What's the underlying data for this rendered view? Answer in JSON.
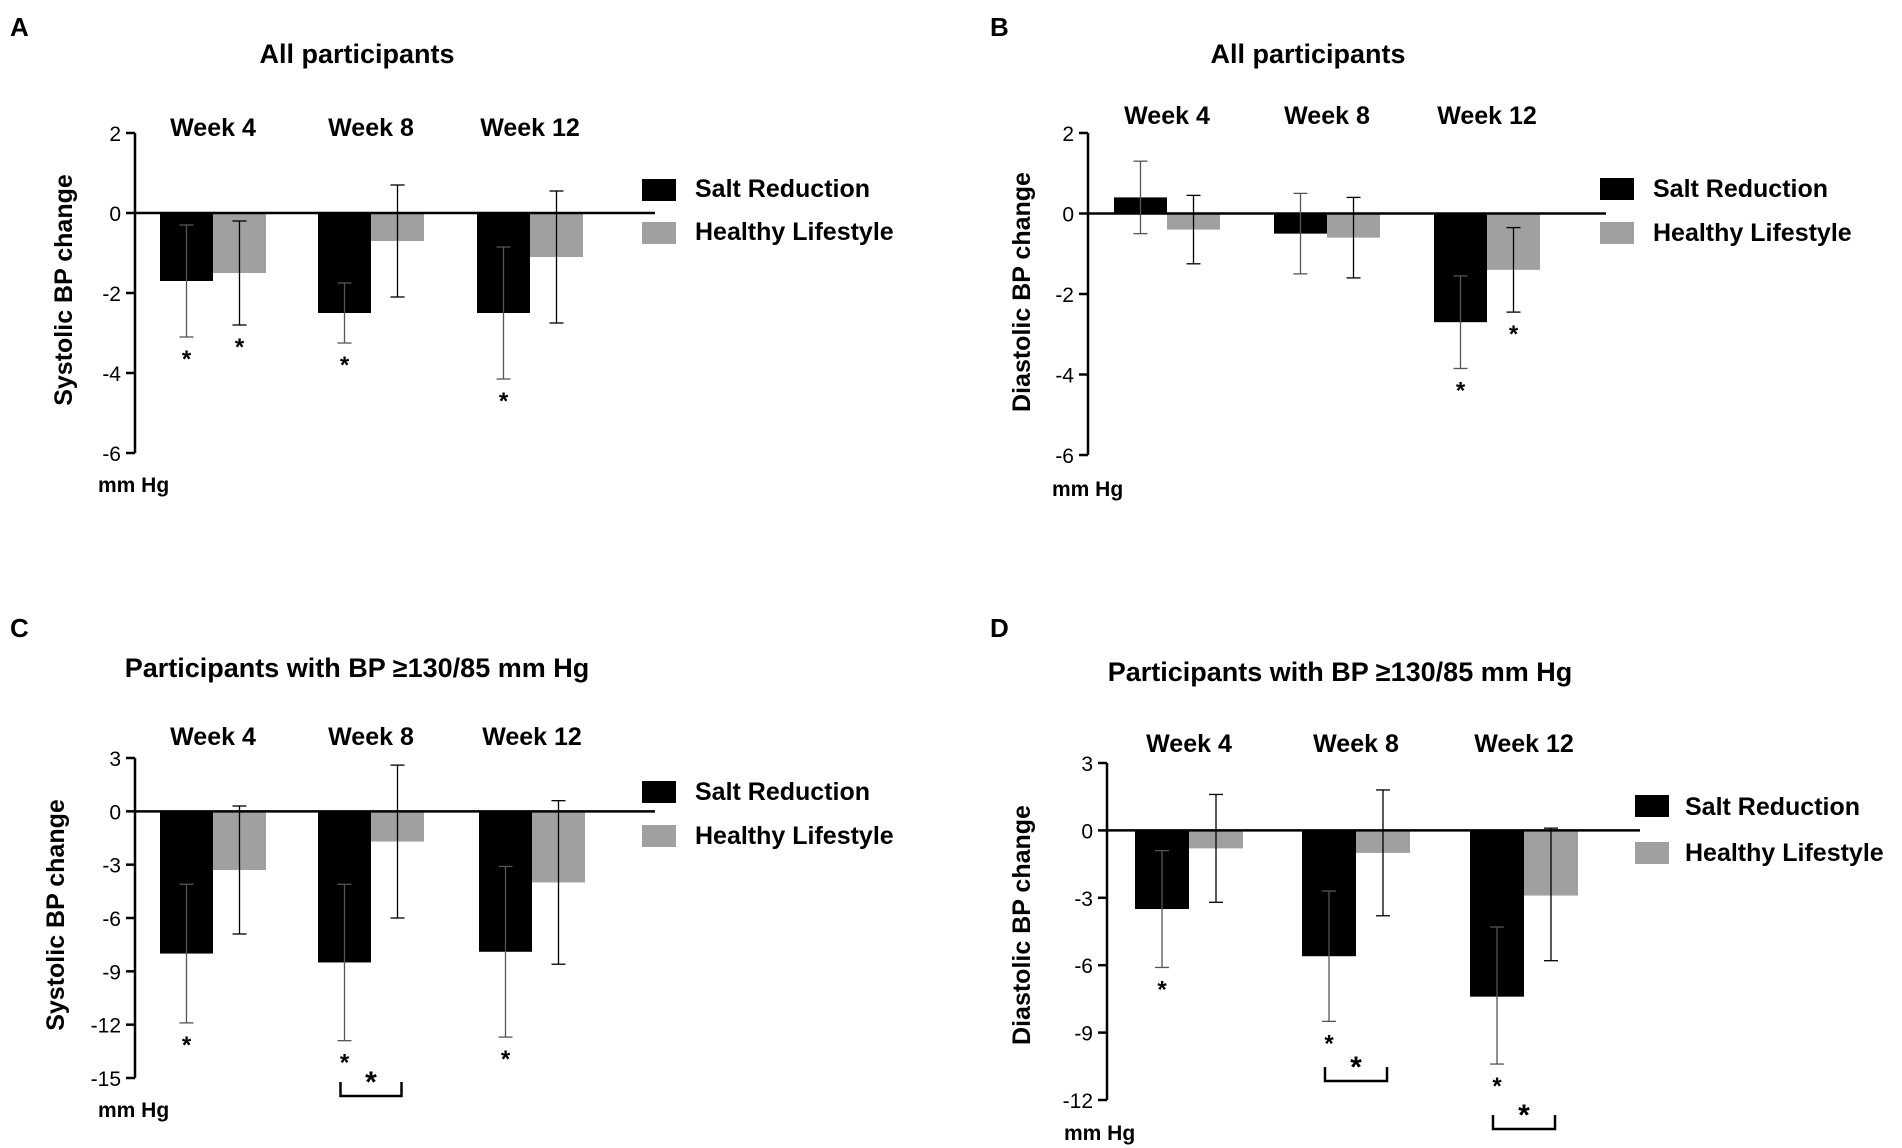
{
  "colors": {
    "salt": "#000000",
    "healthy": "#a0a0a0",
    "axis": "#000000"
  },
  "chart_data": [
    {
      "type": "bar",
      "panel_letter": "A",
      "title": "All participants",
      "ylabel": "Systolic BP change",
      "unit_label": "mm Hg",
      "ylim": [
        -6,
        2
      ],
      "yticks": [
        2,
        0,
        -2,
        -4,
        -6
      ],
      "ytick_labels": [
        "2",
        "0",
        "-2",
        "-4",
        "-6"
      ],
      "categories": [
        "Week 4",
        "Week 8",
        "Week 12"
      ],
      "series": [
        {
          "name": "Salt Reduction",
          "color": "#000000",
          "values": [
            -1.7,
            -2.5,
            -2.5
          ],
          "error_low": [
            -3.1,
            -3.25,
            -4.15
          ],
          "error_high": [
            -0.3,
            -1.75,
            -0.85
          ],
          "sig": [
            "*",
            "*",
            "*"
          ]
        },
        {
          "name": "Healthy Lifestyle",
          "color": "#a0a0a0",
          "values": [
            -1.5,
            -0.7,
            -1.1
          ],
          "error_low": [
            -2.8,
            -2.1,
            -2.75
          ],
          "error_high": [
            -0.2,
            0.7,
            0.55
          ],
          "sig": [
            "*",
            "",
            ""
          ]
        }
      ],
      "brackets": []
    },
    {
      "type": "bar",
      "panel_letter": "B",
      "title": "All participants",
      "ylabel": "Diastolic BP change",
      "unit_label": "mm Hg",
      "ylim": [
        -6,
        2
      ],
      "yticks": [
        2,
        0,
        -2,
        -4,
        -6
      ],
      "ytick_labels": [
        "2",
        "0",
        "-2",
        "-4",
        "-6"
      ],
      "categories": [
        "Week 4",
        "Week 8",
        "Week 12"
      ],
      "series": [
        {
          "name": "Salt Reduction",
          "color": "#000000",
          "values": [
            0.4,
            -0.5,
            -2.7
          ],
          "error_low": [
            -0.5,
            -1.5,
            -3.85
          ],
          "error_high": [
            1.3,
            0.5,
            -1.55
          ],
          "sig": [
            "",
            "",
            "*"
          ]
        },
        {
          "name": "Healthy Lifestyle",
          "color": "#a0a0a0",
          "values": [
            -0.4,
            -0.6,
            -1.4
          ],
          "error_low": [
            -1.25,
            -1.6,
            -2.45
          ],
          "error_high": [
            0.45,
            0.4,
            -0.35
          ],
          "sig": [
            "",
            "",
            "*"
          ]
        }
      ],
      "brackets": []
    },
    {
      "type": "bar",
      "panel_letter": "C",
      "title": "Participants with BP ≥130/85 mm Hg",
      "ylabel": "Systolic BP change",
      "unit_label": "mm Hg",
      "ylim": [
        -15,
        3
      ],
      "yticks": [
        3,
        0,
        -3,
        -6,
        -9,
        -12,
        -15
      ],
      "ytick_labels": [
        "3",
        "0",
        "-3",
        "-6",
        "-9",
        "-12",
        "-15"
      ],
      "categories": [
        "Week 4",
        "Week 8",
        "Week 12"
      ],
      "series": [
        {
          "name": "Salt Reduction",
          "color": "#000000",
          "values": [
            -8.0,
            -8.5,
            -7.9
          ],
          "error_low": [
            -11.9,
            -12.9,
            -12.7
          ],
          "error_high": [
            -4.1,
            -4.1,
            -3.1
          ],
          "sig": [
            "*",
            "*",
            "*"
          ]
        },
        {
          "name": "Healthy Lifestyle",
          "color": "#a0a0a0",
          "values": [
            -3.3,
            -1.7,
            -4.0
          ],
          "error_low": [
            -6.9,
            -6.0,
            -8.6
          ],
          "error_high": [
            0.3,
            2.6,
            0.6
          ],
          "sig": [
            "",
            "",
            ""
          ]
        }
      ],
      "brackets": [
        {
          "category_index": 1,
          "label": "*"
        }
      ]
    },
    {
      "type": "bar",
      "panel_letter": "D",
      "title": "Participants with BP ≥130/85 mm Hg",
      "ylabel": "Diastolic BP change",
      "unit_label": "mm Hg",
      "ylim": [
        -12,
        3
      ],
      "yticks": [
        3,
        0,
        -3,
        -6,
        -9,
        -12
      ],
      "ytick_labels": [
        "3",
        "0",
        "-3",
        "-6",
        "-9",
        "-12"
      ],
      "categories": [
        "Week 4",
        "Week 8",
        "Week 12"
      ],
      "series": [
        {
          "name": "Salt Reduction",
          "color": "#000000",
          "values": [
            -3.5,
            -5.6,
            -7.4
          ],
          "error_low": [
            -6.1,
            -8.5,
            -10.4
          ],
          "error_high": [
            -0.9,
            -2.7,
            -4.3
          ],
          "sig": [
            "*",
            "*",
            "*"
          ]
        },
        {
          "name": "Healthy Lifestyle",
          "color": "#a0a0a0",
          "values": [
            -0.8,
            -1.0,
            -2.9
          ],
          "error_low": [
            -3.2,
            -3.8,
            -5.8
          ],
          "error_high": [
            1.6,
            1.8,
            0.1
          ],
          "sig": [
            "",
            "",
            ""
          ]
        }
      ],
      "brackets": [
        {
          "category_index": 1,
          "label": "*"
        },
        {
          "category_index": 2,
          "label": "*"
        }
      ]
    }
  ]
}
